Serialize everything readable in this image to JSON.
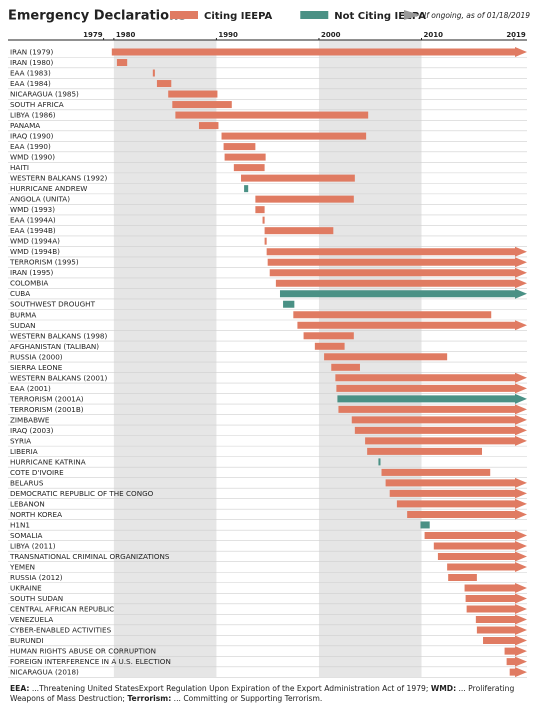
{
  "chart_data": {
    "type": "gantt",
    "title": "Emergency Declarations",
    "ongoing_note": "If ongoing, as of 01/18/2019",
    "series": [
      {
        "name": "Citing IEEPA",
        "color": "#e07b62"
      },
      {
        "name": "Not Citing IEEPA",
        "color": "#4a9185"
      }
    ],
    "ongoing_color": "#999999",
    "categories": [
      "IRAN (1979)",
      "IRAN (1980)",
      "EAA (1983)",
      "EAA (1984)",
      "NICARAGUA (1985)",
      "SOUTH AFRICA",
      "LIBYA (1986)",
      "PANAMA",
      "IRAQ (1990)",
      "EAA (1990)",
      "WMD (1990)",
      "HAITI",
      "WESTERN BALKANS (1992)",
      "HURRICANE ANDREW",
      "ANGOLA (UNITA)",
      "WMD (1993)",
      "EAA (1994A)",
      "EAA (1994B)",
      "WMD (1994A)",
      "WMD (1994B)",
      "TERRORISM (1995)",
      "IRAN (1995)",
      "COLOMBIA",
      "CUBA",
      "SOUTHWEST DROUGHT",
      "BURMA",
      "SUDAN",
      "WESTERN BALKANS (1998)",
      "AFGHANISTAN (TALIBAN)",
      "RUSSIA (2000)",
      "SIERRA LEONE",
      "WESTERN BALKANS (2001)",
      "EAA (2001)",
      "TERRORISM (2001A)",
      "TERRORISM (2001B)",
      "ZIMBABWE",
      "IRAQ (2003)",
      "SYRIA",
      "LIBERIA",
      "HURRICANE KATRINA",
      "COTE D'IVOIRE",
      "BELARUS",
      "DEMOCRATIC REPUBLIC OF THE CONGO",
      "LEBANON",
      "NORTH KOREA",
      "H1N1",
      "SOMALIA",
      "LIBYA (2011)",
      "TRANSNATIONAL CRIMINAL ORGANIZATIONS",
      "YEMEN",
      "RUSSIA (2012)",
      "UKRAINE",
      "SOUTH SUDAN",
      "CENTRAL AFRICAN REPUBLIC",
      "VENEZUELA",
      "CYBER-ENABLED ACTIVITIES",
      "BURUNDI",
      "HUMAN RIGHTS ABUSE OR CORRUPTION",
      "FOREIGN INTERFERENCE IN A U.S. ELECTION",
      "NICARAGUA (2018)"
    ],
    "starts": [
      1979.8,
      1980.3,
      1983.8,
      1984.2,
      1985.3,
      1985.7,
      1986.0,
      1988.3,
      1990.5,
      1990.7,
      1990.8,
      1991.7,
      1992.4,
      1992.7,
      1993.8,
      1993.8,
      1994.5,
      1994.7,
      1994.7,
      1994.9,
      1995.0,
      1995.2,
      1995.8,
      1996.2,
      1996.5,
      1997.5,
      1997.9,
      1998.5,
      1999.6,
      2000.5,
      2001.2,
      2001.6,
      2001.7,
      2001.8,
      2001.9,
      2003.2,
      2003.5,
      2004.5,
      2004.7,
      2005.8,
      2006.1,
      2006.5,
      2006.9,
      2007.6,
      2008.6,
      2009.9,
      2010.3,
      2011.2,
      2011.6,
      2012.5,
      2012.6,
      2014.2,
      2014.3,
      2014.4,
      2015.3,
      2015.4,
      2016.0,
      2018.1,
      2018.3,
      2018.6
    ],
    "ends": [
      null,
      1981.3,
      1984.0,
      1985.6,
      1990.1,
      1991.5,
      2004.8,
      1990.2,
      2004.6,
      1993.8,
      1994.8,
      1994.7,
      2003.5,
      1993.1,
      2003.4,
      1994.7,
      1994.7,
      2001.4,
      1994.9,
      null,
      null,
      null,
      null,
      null,
      1997.6,
      2016.8,
      null,
      2003.4,
      2002.5,
      2012.5,
      2004.0,
      null,
      null,
      null,
      null,
      null,
      null,
      null,
      2015.9,
      2006.0,
      2016.7,
      null,
      null,
      null,
      null,
      2010.8,
      null,
      null,
      null,
      null,
      2015.4,
      null,
      null,
      null,
      null,
      null,
      null,
      null,
      null,
      null
    ],
    "series_index": [
      0,
      0,
      0,
      0,
      0,
      0,
      0,
      0,
      0,
      0,
      0,
      0,
      0,
      1,
      0,
      0,
      0,
      0,
      0,
      0,
      0,
      0,
      0,
      1,
      1,
      0,
      0,
      0,
      0,
      0,
      0,
      0,
      0,
      1,
      0,
      0,
      0,
      0,
      0,
      1,
      0,
      0,
      0,
      0,
      0,
      1,
      0,
      0,
      0,
      0,
      0,
      0,
      0,
      0,
      0,
      0,
      0,
      0,
      0,
      0
    ],
    "xlim": [
      1979,
      2019
    ],
    "xticks": [
      1979,
      1980,
      1990,
      2000,
      2010,
      2019
    ],
    "shaded": [
      [
        1980,
        1990
      ],
      [
        2000,
        2010
      ]
    ],
    "footnote": [
      {
        "term": "EEA:",
        "text": " ...Threatening United StatesExport Regulation Upon Expiration of the Export Administration Act of 1979; "
      },
      {
        "term": "WMD:",
        "text": " ... Proliferating Weapons of Mass Destruction; "
      },
      {
        "term": "Terrorism:",
        "text": " ... Committing or Supporting Terrorism."
      }
    ]
  }
}
